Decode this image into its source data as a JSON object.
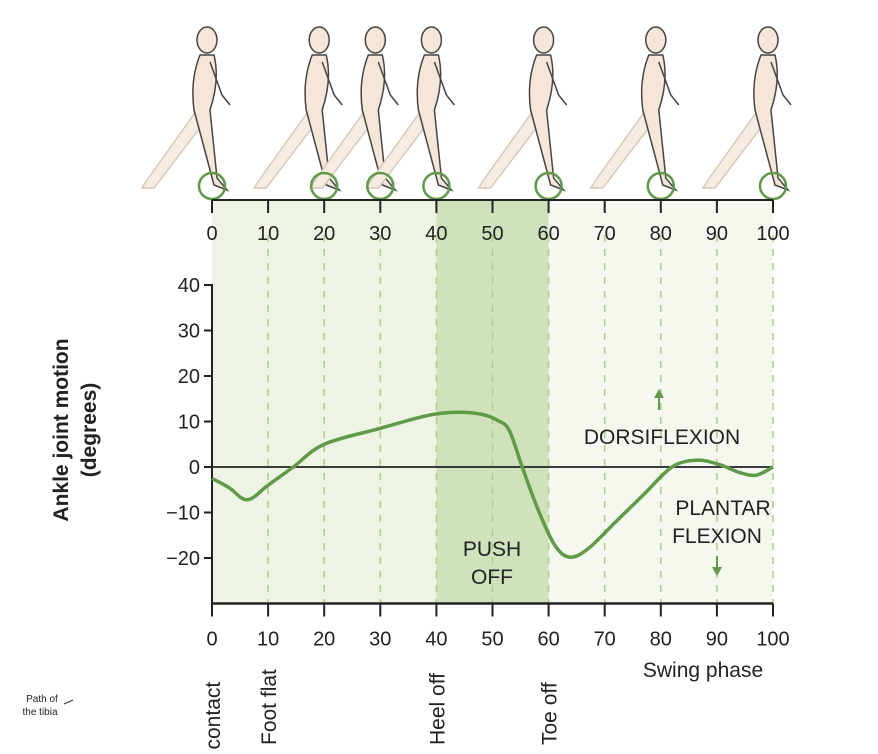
{
  "chart_data": {
    "type": "line",
    "ylabel_line1": "Ankle joint motion",
    "ylabel_line2": "(degrees)",
    "xlim": [
      0,
      100
    ],
    "ylim": [
      -30,
      40
    ],
    "x_ticks": [
      0,
      10,
      20,
      30,
      40,
      50,
      60,
      70,
      80,
      90,
      100
    ],
    "y_ticks": [
      40,
      30,
      20,
      10,
      0,
      -10,
      -20
    ],
    "y_tick_labels": [
      "40",
      "30",
      "20",
      "10",
      "0",
      "−10",
      "−20"
    ],
    "grid": "dashed vertical at every 10",
    "series": [
      {
        "color": "#5e9a47",
        "points": [
          [
            0,
            -2.5
          ],
          [
            3,
            -4.5
          ],
          [
            6.3,
            -7.2
          ],
          [
            10,
            -4
          ],
          [
            14.5,
            0
          ],
          [
            20,
            5
          ],
          [
            30,
            8.5
          ],
          [
            38,
            11.2
          ],
          [
            43,
            12
          ],
          [
            48,
            11.6
          ],
          [
            51,
            10.2
          ],
          [
            53,
            8
          ],
          [
            55.3,
            0
          ],
          [
            58,
            -9
          ],
          [
            61,
            -17
          ],
          [
            63.7,
            -19.8
          ],
          [
            67,
            -18
          ],
          [
            72,
            -12
          ],
          [
            77,
            -6
          ],
          [
            82,
            0
          ],
          [
            86.5,
            1.5
          ],
          [
            90.5,
            0.5
          ],
          [
            94,
            -1.2
          ],
          [
            97,
            -1.8
          ],
          [
            100,
            0
          ]
        ]
      }
    ],
    "bands": [
      {
        "from": 0,
        "to": 40,
        "color": "#eef4e3"
      },
      {
        "from": 40,
        "to": 60,
        "color": "#cfe2bb",
        "label_line1": "PUSH",
        "label_line2": "OFF"
      },
      {
        "from": 60,
        "to": 100,
        "color": "#f4f8ee"
      }
    ],
    "annotations": {
      "dorsiflexion": "DORSIFLEXION",
      "plantar_line1": "PLANTAR",
      "plantar_line2": "FLEXION"
    },
    "events": [
      {
        "x": 0,
        "label": "Heel contact",
        "visible_text": "l contact"
      },
      {
        "x": 10,
        "label": "Foot flat"
      },
      {
        "x": 40,
        "label": "Heel off"
      },
      {
        "x": 60,
        "label": "Toe off"
      }
    ],
    "swing_label": "Swing phase",
    "figure_foot_markers": [
      0,
      20,
      30,
      40,
      60,
      80,
      100
    ],
    "marker_color": "#5e9a47"
  },
  "side_note_line1": "Path of",
  "side_note_line2": "the tibia"
}
